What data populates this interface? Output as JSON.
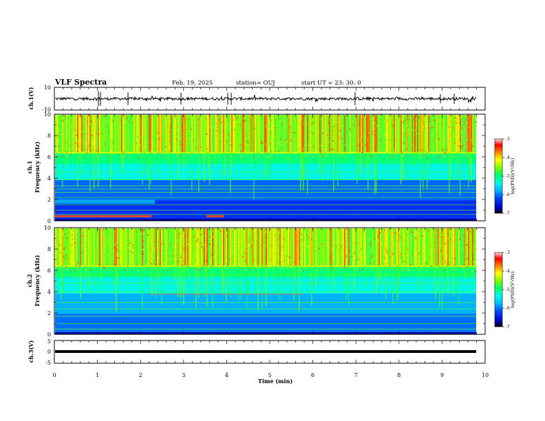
{
  "header": {
    "title": "VLF Spectra",
    "date": "Feb. 19, 2025",
    "station": "station= OUJ",
    "start": "start UT =  23: 30: 0"
  },
  "colors": {
    "trace": "#000000",
    "colormap": [
      "#0000c8",
      "#0000ff",
      "#00a0ff",
      "#00ffff",
      "#00ff80",
      "#40ff00",
      "#c8ff00",
      "#ffff00",
      "#ff9000",
      "#ff0000",
      "#ffd0d0"
    ]
  },
  "chart_data": [
    {
      "type": "line",
      "ylabel": "ch.1(V)",
      "ylim": [
        -10,
        10
      ],
      "yticks": [
        "10",
        "-10"
      ],
      "xlim": [
        0,
        10
      ],
      "description_values": {
        "baseline_V": 0,
        "typical_amplitude_V": 2,
        "spike_amplitude_V": 6
      }
    },
    {
      "type": "heatmap",
      "ylabel_top": "ch.1",
      "ylabel": "Frequency (kHz)",
      "ylim": [
        0,
        10
      ],
      "yticks": [
        "0",
        "2",
        "4",
        "6",
        "8",
        "10"
      ],
      "xlim": [
        0,
        10
      ],
      "colorbar": {
        "label": "log(PSD)(V²/Hz)",
        "range": [
          -7,
          -3
        ],
        "ticks": [
          "-3",
          "-4",
          "-5",
          "-6",
          "-7"
        ]
      }
    },
    {
      "type": "heatmap",
      "ylabel_top": "ch.2",
      "ylabel": "Frequency (kHz)",
      "ylim": [
        0,
        10
      ],
      "yticks": [
        "0",
        "2",
        "4",
        "6",
        "8",
        "10"
      ],
      "xlim": [
        0,
        10
      ],
      "colorbar": {
        "label": "log(PSD)(V²/Hz)",
        "range": [
          -7,
          -3
        ],
        "ticks": [
          "-3",
          "-4",
          "-5",
          "-6",
          "-7"
        ]
      }
    },
    {
      "type": "line",
      "ylabel": "ch.3(V)",
      "ylim": [
        -5,
        5
      ],
      "yticks": [
        "5",
        "0",
        "-5"
      ],
      "xlim": [
        0,
        10
      ],
      "description_values": {
        "level_V": 0
      }
    }
  ],
  "xaxis": {
    "label": "Time (min)",
    "ticks": [
      "0",
      "1",
      "2",
      "3",
      "4",
      "5",
      "6",
      "7",
      "8",
      "9",
      "10"
    ]
  }
}
